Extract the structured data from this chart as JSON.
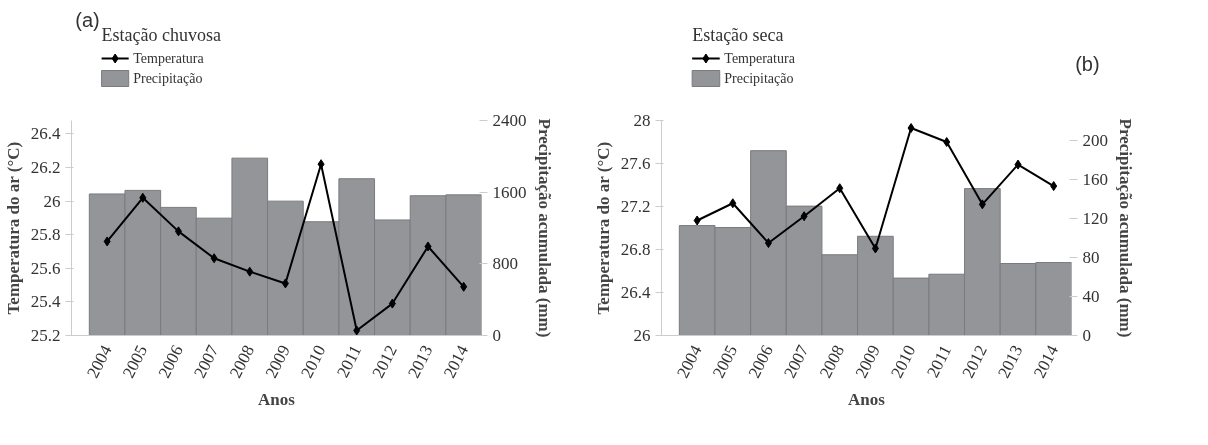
{
  "chart_data": [
    {
      "type": "bar",
      "legend_title": "Estação chuvosa",
      "xlabel": "Anos",
      "ylabel": "Temperatura do ar (°C)",
      "y2label": "Precipitação acumulada (mm)",
      "annotations": [
        "(a)"
      ],
      "categories": [
        "2004",
        "2005",
        "2006",
        "2007",
        "2008",
        "2009",
        "2010",
        "2011",
        "2012",
        "2013",
        "2014"
      ],
      "series": [
        {
          "name": "Temperatura",
          "type": "line",
          "color": "#000000",
          "values": [
            25.76,
            26.02,
            25.82,
            25.66,
            25.58,
            25.51,
            26.22,
            25.23,
            25.39,
            25.73,
            25.49
          ]
        },
        {
          "name": "Precipitação",
          "axis": "y2",
          "color": "#939598",
          "values": [
            1580,
            1620,
            1430,
            1310,
            1980,
            1500,
            1270,
            1750,
            1290,
            1560,
            1570
          ]
        }
      ],
      "ylim": [
        25.2,
        26.48
      ],
      "yticks": [
        25.2,
        25.4,
        25.6,
        25.8,
        26,
        26.2,
        26.4
      ],
      "y2lim": [
        0,
        2400
      ],
      "y2ticks": [
        0,
        800,
        1600,
        2400
      ],
      "marker": "diamond",
      "line_style": "solid",
      "legend": "top left",
      "grid": false
    },
    {
      "type": "bar",
      "legend_title": "Estação seca",
      "xlabel": "Anos",
      "ylabel": "Temperatura do ar (°C)",
      "y2label": "Precipitação acumulada (mm)",
      "annotations": [
        "(b)"
      ],
      "categories": [
        "2004",
        "2005",
        "2006",
        "2007",
        "2008",
        "2009",
        "2010",
        "2011",
        "2012",
        "2013",
        "2014"
      ],
      "series": [
        {
          "name": "Temperatura",
          "type": "line",
          "color": "#000000",
          "values": [
            27.07,
            27.23,
            26.86,
            27.11,
            27.37,
            26.81,
            27.93,
            27.8,
            27.22,
            27.59,
            27.39
          ]
        },
        {
          "name": "Precipitação",
          "axis": "y2",
          "color": "#939598",
          "values": [
            113,
            111,
            190,
            133,
            83,
            102,
            59,
            63,
            151,
            74,
            75
          ]
        }
      ],
      "ylim": [
        26,
        28
      ],
      "yticks": [
        26,
        26.4,
        26.8,
        27.2,
        27.6,
        28
      ],
      "y2lim": [
        0,
        221
      ],
      "y2ticks": [
        0,
        40,
        80,
        120,
        160,
        200
      ],
      "marker": "diamond",
      "line_style": "solid",
      "legend": "top left",
      "grid": false
    }
  ]
}
